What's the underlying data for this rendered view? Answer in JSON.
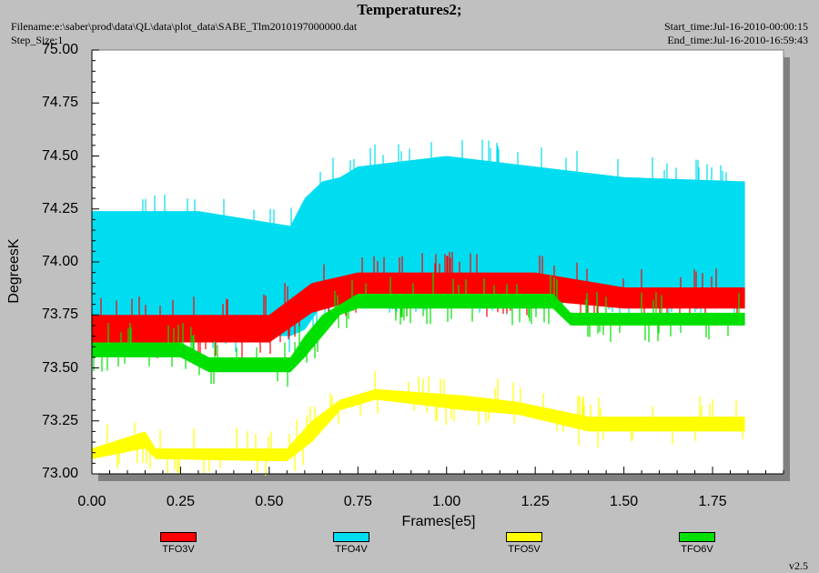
{
  "header": {
    "title": "Temperatures2;",
    "filename": "Filename:e:\\saber\\prod\\data\\QL\\data\\plot_data\\SABE_Tlm2010197000000.dat",
    "step_size": "Step_Size:1",
    "start_time": "Start_time:Jul-16-2010-00:00:15",
    "end_time": "End_time:Jul-16-2010-16:59:43"
  },
  "version": "v2.5",
  "chart_data": {
    "type": "line",
    "title": "Temperatures2;",
    "xlabel": "Frames[e5]",
    "ylabel": "DegreesK",
    "xlim": [
      0,
      1.95
    ],
    "ylim": [
      73.0,
      75.0
    ],
    "xticks": [
      "0.00",
      "0.25",
      "0.50",
      "0.75",
      "1.00",
      "1.25",
      "1.50",
      "1.75"
    ],
    "yticks": [
      "73.00",
      "73.25",
      "73.50",
      "73.75",
      "74.00",
      "74.25",
      "74.50",
      "74.75",
      "75.00"
    ],
    "grid": false,
    "legend_position": "bottom",
    "series": [
      {
        "name": "TFO3V",
        "color": "#ff0000",
        "style": "noisy-band",
        "x": [
          0.0,
          0.3,
          0.5,
          0.62,
          0.75,
          1.0,
          1.25,
          1.5,
          1.84
        ],
        "low": [
          73.62,
          73.62,
          73.62,
          73.76,
          73.82,
          73.82,
          73.82,
          73.78,
          73.78
        ],
        "high": [
          73.75,
          73.75,
          73.75,
          73.9,
          73.95,
          73.95,
          73.95,
          73.88,
          73.88
        ]
      },
      {
        "name": "TFO4V",
        "color": "#00dcf0",
        "style": "noisy-band",
        "x": [
          0.0,
          0.3,
          0.56,
          0.6,
          0.65,
          0.7,
          0.75,
          1.0,
          1.25,
          1.5,
          1.84
        ],
        "low": [
          73.68,
          73.65,
          73.65,
          73.68,
          73.8,
          73.82,
          73.82,
          73.82,
          73.82,
          73.82,
          73.82
        ],
        "high": [
          74.24,
          74.24,
          74.17,
          74.3,
          74.38,
          74.4,
          74.45,
          74.5,
          74.45,
          74.4,
          74.38
        ]
      },
      {
        "name": "TFO5V",
        "color": "#ffff00",
        "style": "noisy-band",
        "x": [
          0.0,
          0.15,
          0.18,
          0.5,
          0.55,
          0.62,
          0.7,
          0.8,
          1.05,
          1.2,
          1.4,
          1.5,
          1.84
        ],
        "low": [
          73.07,
          73.12,
          73.07,
          73.06,
          73.06,
          73.15,
          73.3,
          73.35,
          73.3,
          73.28,
          73.2,
          73.2,
          73.2
        ],
        "high": [
          73.12,
          73.2,
          73.12,
          73.12,
          73.12,
          73.25,
          73.35,
          73.4,
          73.37,
          73.34,
          73.27,
          73.27,
          73.27
        ]
      },
      {
        "name": "TFO6V",
        "color": "#00e000",
        "style": "noisy-band",
        "x": [
          0.0,
          0.25,
          0.33,
          0.56,
          0.6,
          0.65,
          0.7,
          0.75,
          1.0,
          1.3,
          1.35,
          1.5,
          1.84
        ],
        "low": [
          73.55,
          73.55,
          73.48,
          73.48,
          73.55,
          73.65,
          73.75,
          73.78,
          73.78,
          73.78,
          73.7,
          73.7,
          73.7
        ],
        "high": [
          73.62,
          73.62,
          73.55,
          73.55,
          73.65,
          73.75,
          73.8,
          73.85,
          73.85,
          73.85,
          73.76,
          73.76,
          73.76
        ]
      }
    ]
  }
}
